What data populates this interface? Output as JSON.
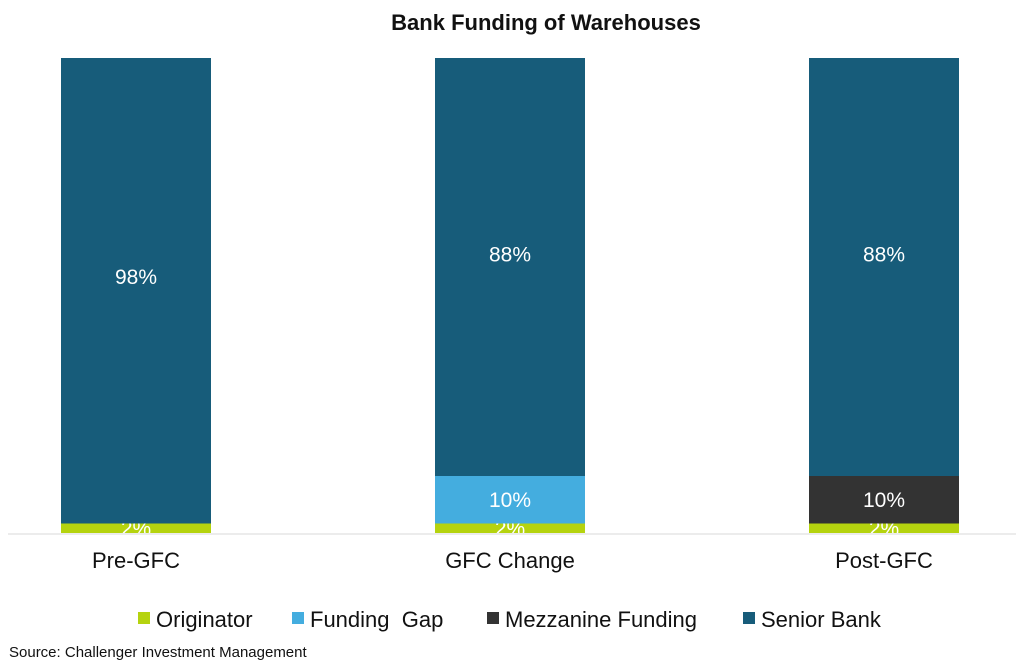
{
  "chart_data": {
    "type": "bar",
    "stacked": true,
    "title": "Bank Funding of Warehouses",
    "xlabel": "",
    "ylabel": "",
    "ylim": [
      0,
      100
    ],
    "categories": [
      "Pre-GFC",
      "GFC Change",
      "Post-GFC"
    ],
    "series": [
      {
        "name": "Originator",
        "color": "#b5d30f",
        "values": [
          2,
          2,
          2
        ],
        "labels": [
          "2%",
          "2%",
          "2%"
        ]
      },
      {
        "name": "Funding  Gap",
        "color": "#44addf",
        "values": [
          0,
          10,
          0
        ],
        "labels": [
          "",
          "10%",
          ""
        ]
      },
      {
        "name": "Mezzanine Funding",
        "color": "#333333",
        "values": [
          0,
          0,
          10
        ],
        "labels": [
          "",
          "",
          "10%"
        ]
      },
      {
        "name": "Senior Bank",
        "color": "#175c7a",
        "values": [
          98,
          88,
          88
        ],
        "labels": [
          "98%",
          "88%",
          "88%"
        ]
      }
    ],
    "legend_position": "bottom",
    "grid": false
  },
  "source": "Source: Challenger Investment Management"
}
